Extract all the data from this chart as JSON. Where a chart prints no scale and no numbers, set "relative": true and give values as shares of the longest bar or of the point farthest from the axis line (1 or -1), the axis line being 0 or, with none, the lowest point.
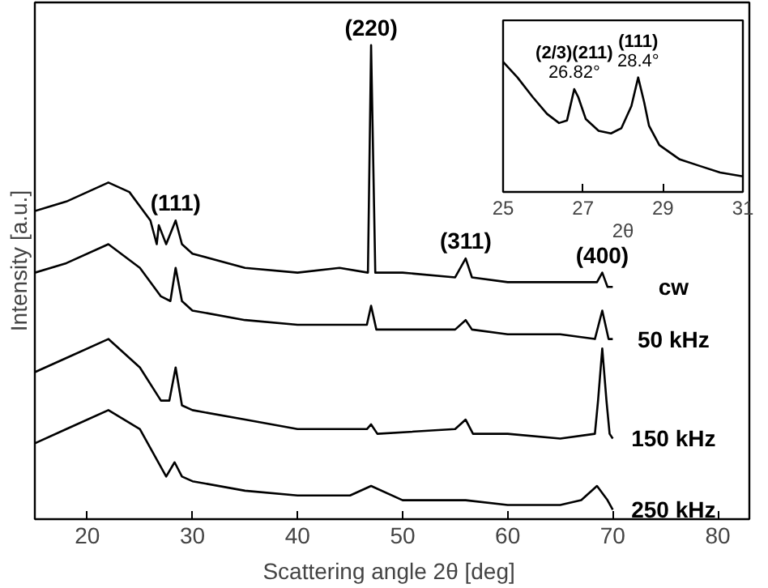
{
  "chart_data": [
    {
      "type": "line",
      "xlabel": "Scattering angle 2θ  [deg]",
      "ylabel": "Intensity [a.u.]",
      "relative": true,
      "xlim": [
        15,
        83
      ],
      "xticks": [
        20,
        30,
        40,
        50,
        60,
        70,
        80
      ],
      "grid": false,
      "legend": "right",
      "marker": "none",
      "line_style": "solid",
      "series": [
        {
          "name": "cw",
          "color": "#000000",
          "x": [
            15,
            18,
            22,
            24,
            26,
            26.6,
            26.8,
            27.5,
            28.4,
            29,
            30,
            35,
            40,
            44,
            46.7,
            47,
            47.4,
            50,
            55,
            56,
            56.6,
            60,
            65,
            68.5,
            69,
            69.5,
            70
          ],
          "values": [
            0.65,
            0.67,
            0.71,
            0.69,
            0.63,
            0.58,
            0.62,
            0.58,
            0.63,
            0.58,
            0.56,
            0.53,
            0.52,
            0.53,
            0.52,
            1.0,
            0.52,
            0.52,
            0.51,
            0.55,
            0.51,
            0.5,
            0.5,
            0.5,
            0.52,
            0.49,
            0.49
          ]
        },
        {
          "name": "50 kHz",
          "color": "#000000",
          "x": [
            15,
            18,
            22,
            25,
            27,
            27.9,
            28.4,
            29,
            30,
            35,
            40,
            44,
            46.6,
            47,
            47.5,
            50,
            55,
            56,
            56.6,
            60,
            65,
            68.3,
            69,
            69.6,
            70
          ],
          "values": [
            0.52,
            0.54,
            0.58,
            0.53,
            0.47,
            0.46,
            0.53,
            0.46,
            0.44,
            0.42,
            0.41,
            0.41,
            0.41,
            0.45,
            0.4,
            0.4,
            0.4,
            0.42,
            0.4,
            0.39,
            0.39,
            0.38,
            0.44,
            0.38,
            0.38
          ]
        },
        {
          "name": "150 kHz",
          "color": "#000000",
          "x": [
            15,
            18,
            22,
            25,
            27,
            27.8,
            28.4,
            29,
            30,
            35,
            40,
            46.6,
            47,
            47.6,
            55,
            56,
            56.7,
            60,
            65,
            68.3,
            68.6,
            69,
            69.4,
            69.7,
            70
          ],
          "values": [
            0.31,
            0.34,
            0.38,
            0.32,
            0.25,
            0.25,
            0.32,
            0.24,
            0.23,
            0.21,
            0.19,
            0.19,
            0.2,
            0.18,
            0.19,
            0.21,
            0.18,
            0.18,
            0.17,
            0.18,
            0.25,
            0.36,
            0.25,
            0.18,
            0.17
          ]
        },
        {
          "name": "250 kHz",
          "color": "#000000",
          "x": [
            15,
            18,
            22,
            25,
            27.5,
            28.3,
            29,
            30,
            35,
            40,
            45,
            47,
            50,
            55,
            56,
            60,
            65,
            67,
            68.5,
            69.5,
            70
          ],
          "values": [
            0.16,
            0.19,
            0.23,
            0.19,
            0.09,
            0.12,
            0.09,
            0.08,
            0.06,
            0.05,
            0.05,
            0.07,
            0.04,
            0.04,
            0.04,
            0.03,
            0.03,
            0.04,
            0.07,
            0.04,
            0.02
          ]
        }
      ],
      "annotations": [
        {
          "text": "(111)",
          "x": 28.4,
          "y": 0.63
        },
        {
          "text": "(220)",
          "x": 47,
          "y": 1.0
        },
        {
          "text": "(311)",
          "x": 56,
          "y": 0.55
        },
        {
          "text": "(400)",
          "x": 69,
          "y": 0.52
        }
      ]
    },
    {
      "type": "line",
      "xlabel": "2θ",
      "relative": true,
      "xlim": [
        25,
        31
      ],
      "xticks": [
        25,
        27,
        29,
        31
      ],
      "grid": false,
      "marker": "none",
      "line_style": "solid",
      "series": [
        {
          "color": "#000000",
          "x": [
            25,
            25.36,
            25.74,
            26.1,
            26.4,
            26.6,
            26.78,
            26.88,
            27.07,
            27.39,
            27.7,
            27.96,
            28.21,
            28.38,
            28.53,
            28.65,
            28.91,
            29.42,
            29.92,
            30.43,
            31
          ],
          "values": [
            1.0,
            0.88,
            0.73,
            0.6,
            0.53,
            0.55,
            0.79,
            0.73,
            0.56,
            0.47,
            0.45,
            0.49,
            0.66,
            0.88,
            0.69,
            0.51,
            0.36,
            0.25,
            0.2,
            0.15,
            0.12
          ]
        }
      ],
      "annotations": [
        {
          "text": "(2/3)(211)",
          "x": 26.78,
          "y": 0.79
        },
        {
          "text": "26.82°",
          "x": 26.78,
          "y": 0.79
        },
        {
          "text": "(111)",
          "x": 28.38,
          "y": 0.88
        },
        {
          "text": "28.4°",
          "x": 28.38,
          "y": 0.88
        }
      ]
    }
  ]
}
